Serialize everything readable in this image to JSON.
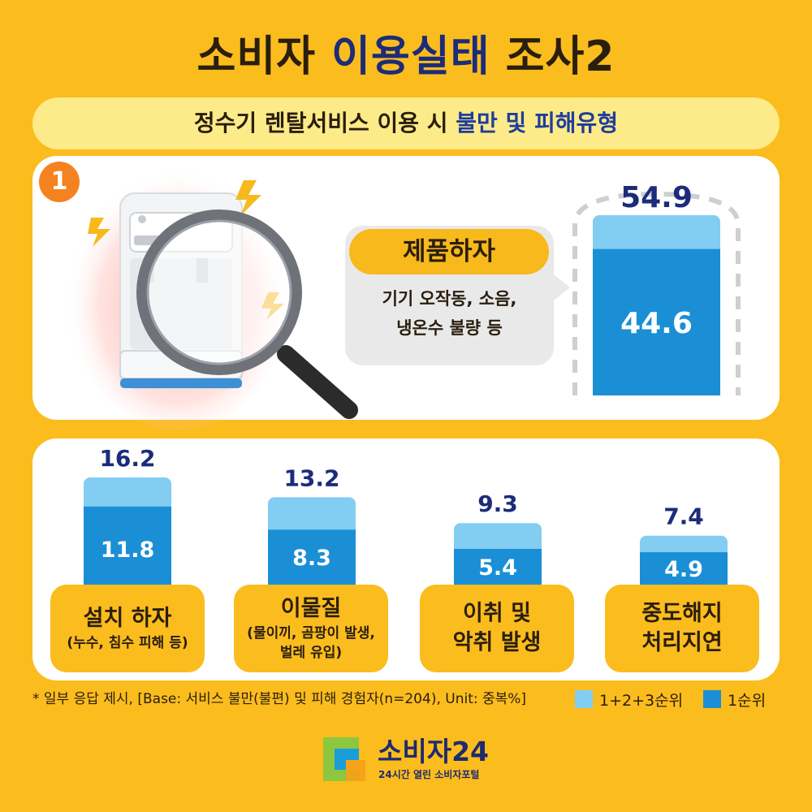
{
  "title": {
    "part1": "소비자",
    "part2": "이용실태",
    "part3": "조사2"
  },
  "subtitle": {
    "part1": "정수기 렌탈서비스 이용 시",
    "part2": "불만 및 피해유형"
  },
  "badge": "1",
  "featured": {
    "tag": "제품하자",
    "desc_line1": "기기 오작동, 소음,",
    "desc_line2": "냉온수 불량 등"
  },
  "footnote": "* 일부 응답 제시, [Base: 서비스 불만(불편) 및 피해 경험자(n=204), Unit:  중복%]",
  "legend": [
    {
      "label": "1+2+3순위",
      "color": "#82CDF1"
    },
    {
      "label": "1순위",
      "color": "#1A8FD6"
    }
  ],
  "logo": {
    "name": "소비자24",
    "tagline": "24시간 열린 소비자포털"
  },
  "chart_data": {
    "type": "bar",
    "categories": [
      "제품하자",
      "설치 하자",
      "이물질",
      "이취 및 악취 발생",
      "중도해지 처리지연"
    ],
    "series": [
      {
        "name": "1+2+3순위",
        "values": [
          54.9,
          16.2,
          13.2,
          9.3,
          7.4
        ]
      },
      {
        "name": "1순위",
        "values": [
          44.6,
          11.8,
          8.3,
          5.4,
          4.9
        ]
      }
    ],
    "title": "",
    "xlabel": "",
    "ylabel": "",
    "labels": [
      {
        "main": "설치 하자",
        "sub": "(누수, 침수 피해 등)"
      },
      {
        "main": "이물질",
        "sub1": "(물이끼, 곰팡이 발생,",
        "sub2": "벌레 유입)"
      },
      {
        "main1": "이취 및",
        "main2": "악취 발생"
      },
      {
        "main1": "중도해지",
        "main2": "처리지연"
      }
    ]
  }
}
